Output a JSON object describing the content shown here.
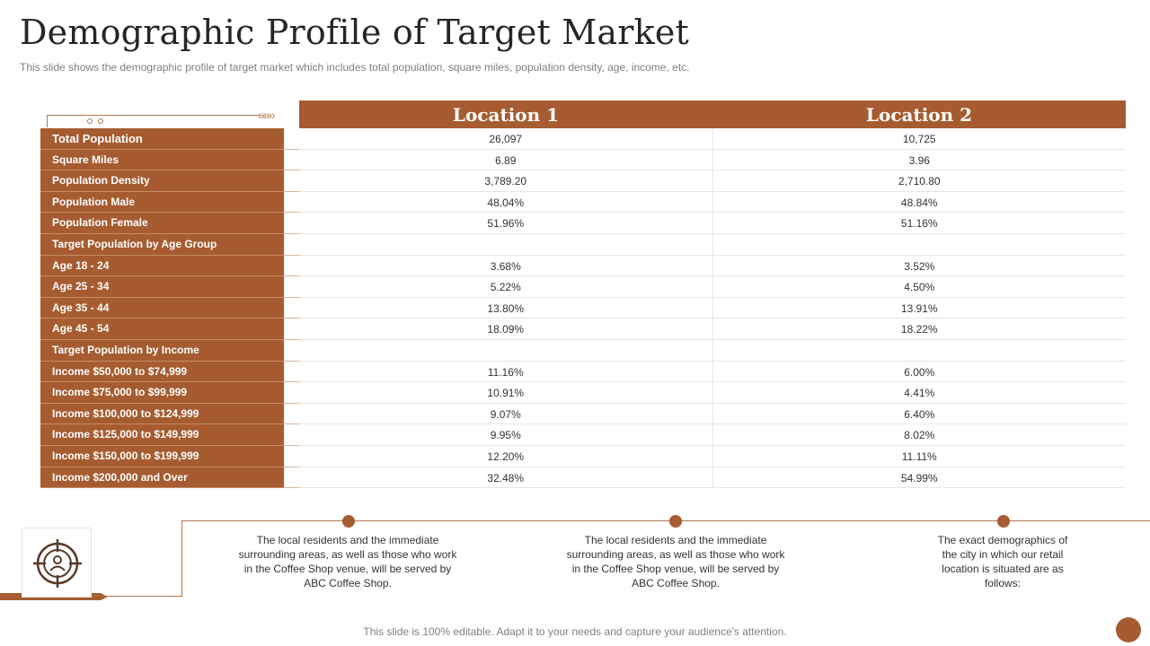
{
  "title": "Demographic Profile of Target Market",
  "subtitle": "This slide shows the demographic  profile  of target market which includes total population,  square miles, population density, age, income, etc.",
  "colors": {
    "accent": "#a65c30",
    "line": "#b0764b"
  },
  "table": {
    "headers": [
      "Location 1",
      "Location 2"
    ],
    "rows": [
      {
        "label": "Total Population",
        "loc1": "26,097",
        "loc2": "10,725"
      },
      {
        "label": "Square Miles",
        "loc1": "6.89",
        "loc2": "3.96"
      },
      {
        "label": "Population Density",
        "loc1": "3,789.20",
        "loc2": "2,710.80"
      },
      {
        "label": "Population Male",
        "loc1": "48.04%",
        "loc2": "48.84%"
      },
      {
        "label": "Population Female",
        "loc1": "51.96%",
        "loc2": "51.16%"
      },
      {
        "label": "Target Population by Age Group",
        "loc1": "",
        "loc2": ""
      },
      {
        "label": "Age 18 - 24",
        "loc1": "3.68%",
        "loc2": "3.52%"
      },
      {
        "label": "Age 25 - 34",
        "loc1": "5.22%",
        "loc2": "4.50%"
      },
      {
        "label": "Age 35 - 44",
        "loc1": "13.80%",
        "loc2": "13.91%"
      },
      {
        "label": "Age 45 - 54",
        "loc1": "18.09%",
        "loc2": "18.22%"
      },
      {
        "label": "Target Population by Income",
        "loc1": "",
        "loc2": ""
      },
      {
        "label": "Income $50,000 to $74,999",
        "loc1": "11.16%",
        "loc2": "6.00%"
      },
      {
        "label": "Income $75,000 to $99,999",
        "loc1": "10.91%",
        "loc2": "4.41%"
      },
      {
        "label": "Income $100,000 to $124,999",
        "loc1": "9.07%",
        "loc2": "6.40%"
      },
      {
        "label": "Income $125,000 to $149,999",
        "loc1": "9.95%",
        "loc2": "8.02%"
      },
      {
        "label": "Income $150,000 to $199,999",
        "loc1": "12.20%",
        "loc2": "11.11%"
      },
      {
        "label": "Income $200,000 and Over",
        "loc1": "32.48%",
        "loc2": "54.99%"
      }
    ]
  },
  "icon": "target-user-icon",
  "captions": [
    "The local residents and the immediate surrounding  areas, as well as those who work in the Coffee Shop venue, will be served  by ABC Coffee Shop.",
    "The local residents and the immediate surrounding  areas, as well as those who work in the Coffee Shop venue, will be served  by ABC Coffee Shop.",
    "The exact demographics of the city in which our retail location is situated are as follows:"
  ],
  "footer": "This slide is 100% editable. Adapt it to your needs and capture your audience's attention."
}
